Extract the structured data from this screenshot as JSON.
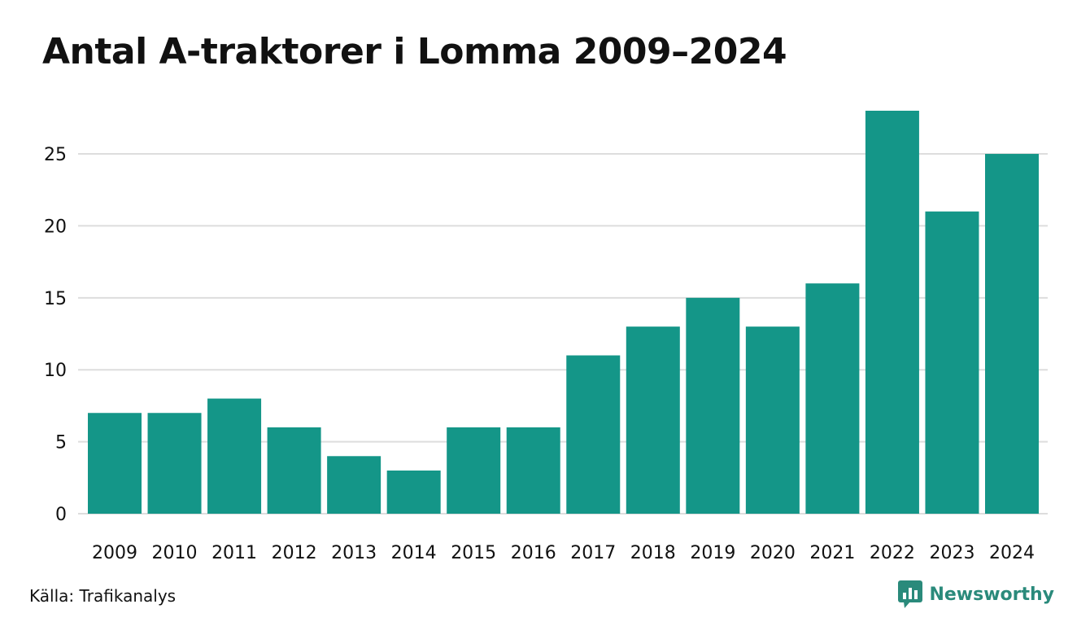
{
  "title": "Antal A-traktorer i Lomma 2009–2024",
  "source": "Källa: Trafikanalys",
  "brand": {
    "name": "Newsworthy",
    "color": "#2a8a7b"
  },
  "chart_data": {
    "type": "bar",
    "title": "Antal A-traktorer i Lomma 2009–2024",
    "xlabel": "",
    "ylabel": "",
    "categories": [
      "2009",
      "2010",
      "2011",
      "2012",
      "2013",
      "2014",
      "2015",
      "2016",
      "2017",
      "2018",
      "2019",
      "2020",
      "2021",
      "2022",
      "2023",
      "2024"
    ],
    "values": [
      7,
      7,
      8,
      6,
      4,
      3,
      6,
      6,
      11,
      13,
      15,
      13,
      16,
      28,
      21,
      25
    ],
    "ylim": [
      0,
      28
    ],
    "yticks": [
      "0",
      "5",
      "10",
      "15",
      "20",
      "25"
    ],
    "grid": true,
    "bar_color": "#149688",
    "grid_color": "#dddddd"
  }
}
